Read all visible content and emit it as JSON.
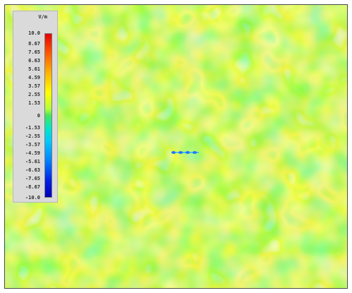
{
  "legend": {
    "unit": "V/m",
    "ticks": [
      "10.0",
      "8.67",
      "7.65",
      "6.63",
      "5.61",
      "4.59",
      "3.57",
      "2.55",
      "1.53",
      "0",
      "-1.53",
      "-2.55",
      "-3.57",
      "-4.59",
      "-5.61",
      "-6.63",
      "-7.65",
      "-8.67",
      "-10.0"
    ],
    "scale_min": -10.0,
    "scale_max": 10.0
  },
  "colors": {
    "background": "#6fe35a",
    "frame": "#4a4a4a"
  }
}
